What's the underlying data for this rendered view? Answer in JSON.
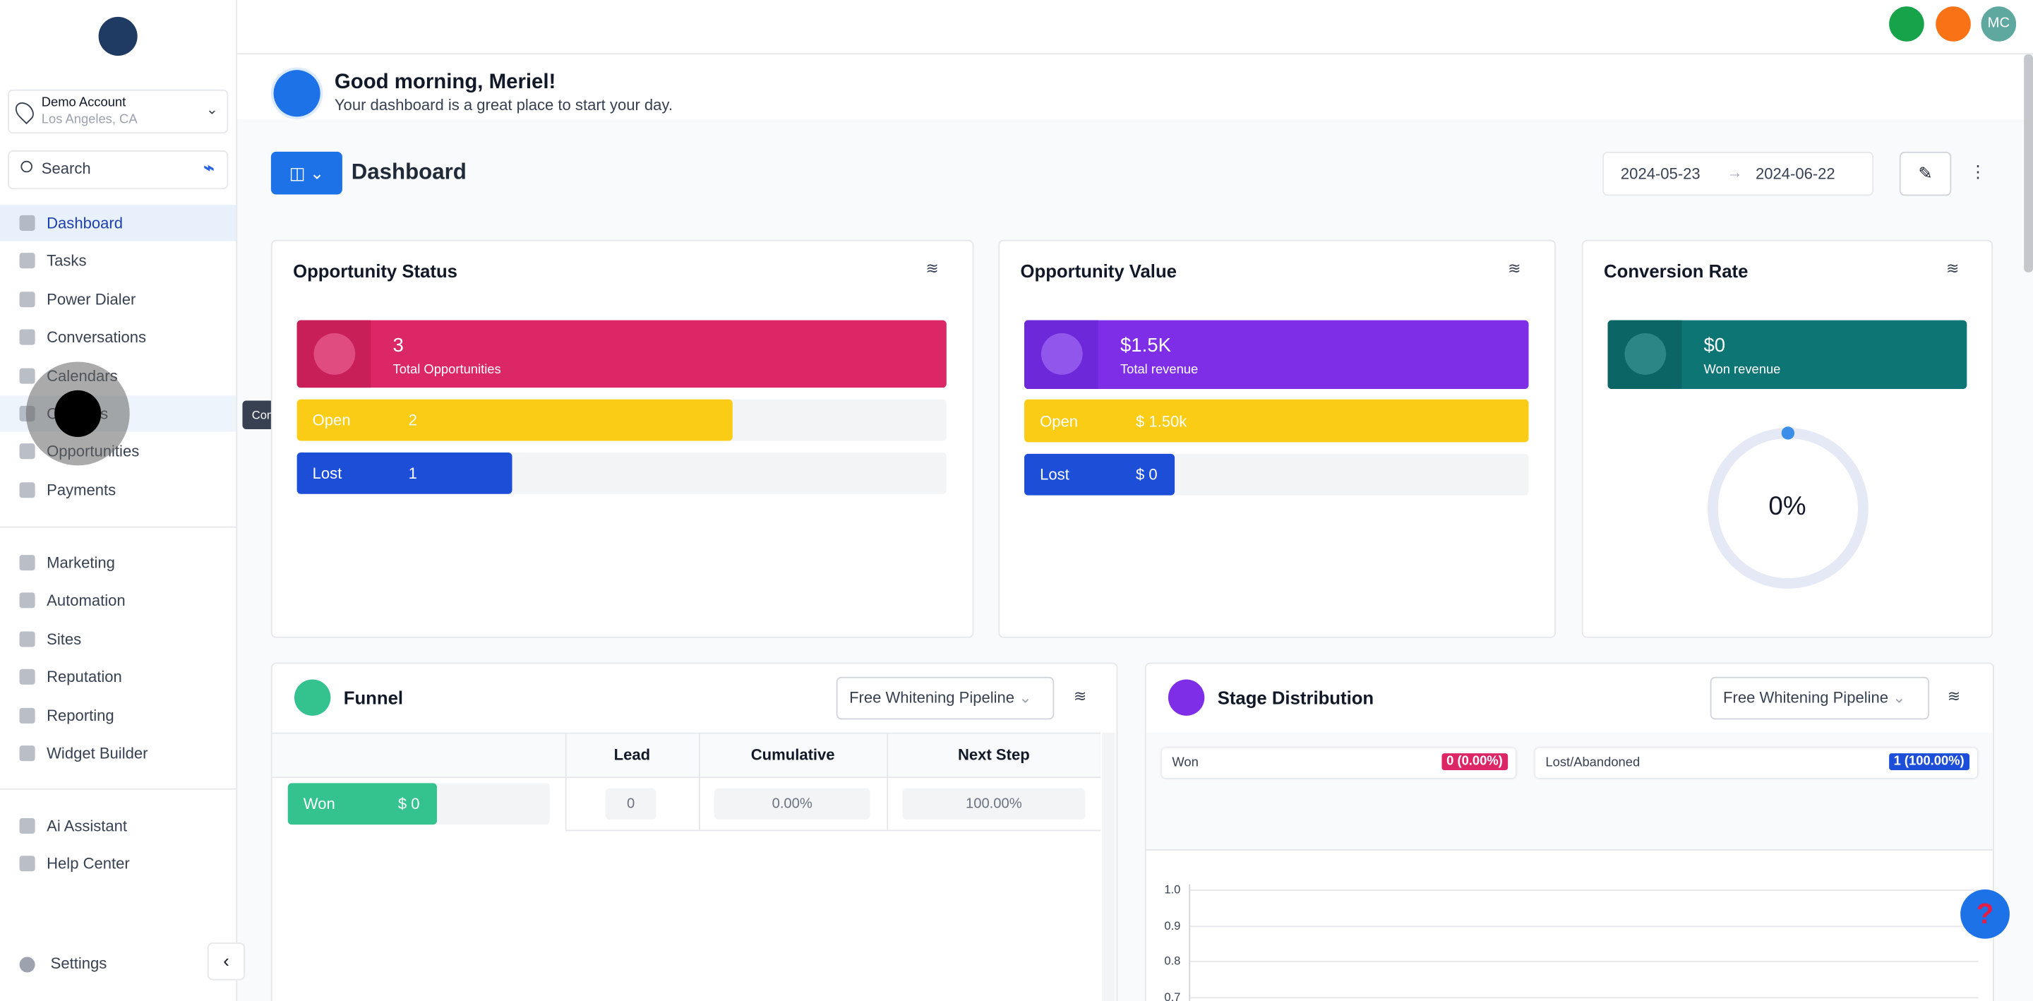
{
  "sidebar": {
    "account": {
      "name": "Demo Account",
      "location": "Los Angeles, CA"
    },
    "search": "Search",
    "nav": [
      "Dashboard",
      "Tasks",
      "Power Dialer",
      "Conversations",
      "Calendars",
      "Contacts",
      "Opportunities",
      "Payments"
    ],
    "nav2": [
      "Marketing",
      "Automation",
      "Sites",
      "Reputation",
      "Reporting",
      "Widget Builder"
    ],
    "nav3": [
      "Ai Assistant",
      "Help Center"
    ],
    "settings": "Settings",
    "tooltip": "Contacts"
  },
  "topbar": {
    "avatar": "MC"
  },
  "greeting": {
    "title": "Good morning, Meriel!",
    "subtitle": "Your dashboard is a great place to start your day."
  },
  "dashboard": {
    "title": "Dashboard",
    "date_start": "2024-05-23",
    "date_end": "2024-06-22"
  },
  "opportunity_status": {
    "title": "Opportunity Status",
    "total": "3",
    "total_label": "Total Opportunities",
    "rows": [
      {
        "label": "Open",
        "value": "2"
      },
      {
        "label": "Lost",
        "value": "1"
      }
    ]
  },
  "opportunity_value": {
    "title": "Opportunity Value",
    "total": "$1.5K",
    "total_label": "Total revenue",
    "rows": [
      {
        "label": "Open",
        "value": "$ 1.50k"
      },
      {
        "label": "Lost",
        "value": "$ 0"
      }
    ]
  },
  "conversion_rate": {
    "title": "Conversion Rate",
    "total": "$0",
    "total_label": "Won revenue",
    "rate": "0%"
  },
  "funnel": {
    "title": "Funnel",
    "pipeline": "Free Whitening Pipeline",
    "columns": [
      "Lead",
      "Cumulative",
      "Next Step"
    ],
    "row": {
      "stage": "Won",
      "value": "$ 0",
      "lead": "0",
      "cumulative": "0.00%",
      "next_step": "100.00%"
    }
  },
  "stage_distribution": {
    "title": "Stage Distribution",
    "pipeline": "Free Whitening Pipeline",
    "won": {
      "label": "Won",
      "value": "0 (0.00%)"
    },
    "lost": {
      "label": "Lost/Abandoned",
      "value": "1 (100.00%)"
    },
    "yticks": [
      "1.0",
      "0.9",
      "0.8",
      "0.7"
    ]
  }
}
